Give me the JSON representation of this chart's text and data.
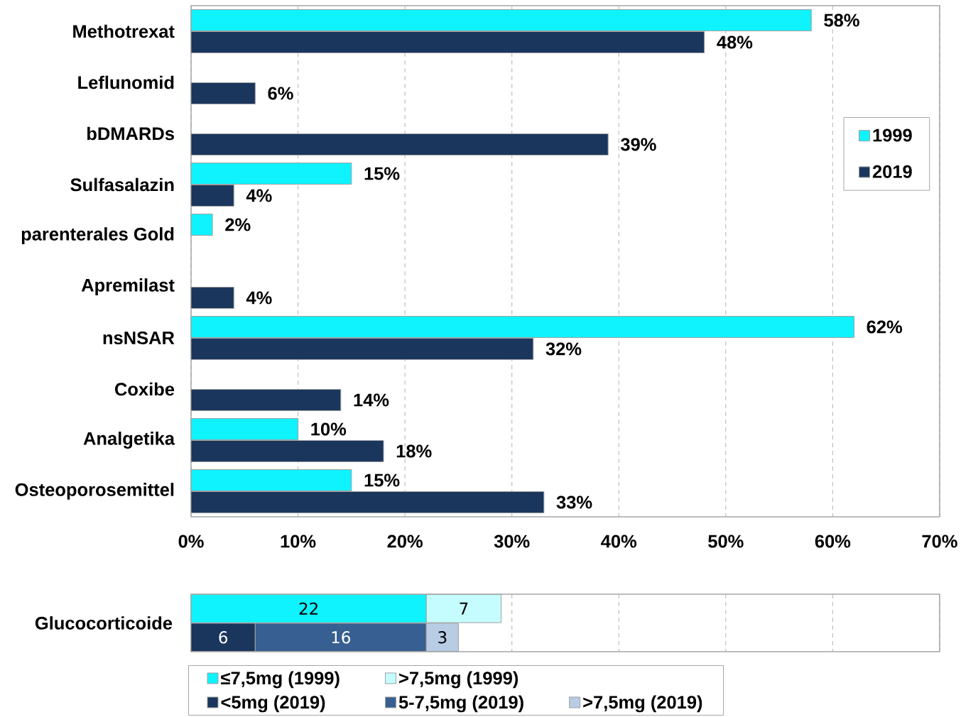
{
  "chart_data": [
    {
      "type": "bar",
      "orientation": "horizontal",
      "categories": [
        "Methotrexat",
        "Leflunomid",
        "bDMARDs",
        "Sulfasalazin",
        "parenterales Gold",
        "Apremilast",
        "nsNSAR",
        "Coxibe",
        "Analgetika",
        "Osteoporosemittel"
      ],
      "series": [
        {
          "name": "1999",
          "color": "#0ff3ff",
          "values": [
            58,
            null,
            null,
            15,
            2,
            null,
            62,
            null,
            10,
            15
          ],
          "value_labels": [
            "58%",
            null,
            null,
            "15%",
            "2%",
            null,
            "62%",
            null,
            "10%",
            "15%"
          ]
        },
        {
          "name": "2019",
          "color": "#1a365d",
          "values": [
            48,
            6,
            39,
            4,
            null,
            4,
            32,
            14,
            18,
            33
          ],
          "value_labels": [
            "48%",
            "6%",
            "39%",
            "4%",
            null,
            "4%",
            "32%",
            "14%",
            "18%",
            "33%"
          ]
        }
      ],
      "xlim": [
        0,
        70
      ],
      "xticks": [
        {
          "value": 0,
          "label": "0%"
        },
        {
          "value": 10,
          "label": "10%"
        },
        {
          "value": 20,
          "label": "20%"
        },
        {
          "value": 30,
          "label": "30%"
        },
        {
          "value": 40,
          "label": "40%"
        },
        {
          "value": 50,
          "label": "50%"
        },
        {
          "value": 60,
          "label": "60%"
        },
        {
          "value": 70,
          "label": "70%"
        }
      ],
      "grid": "x",
      "legend": "right"
    },
    {
      "type": "bar",
      "orientation": "horizontal",
      "stacked": true,
      "categories": [
        null,
        null
      ],
      "ylabel": "Glucocorticoide",
      "series": [
        {
          "name": "≤7,5mg (1999)",
          "color": "#0ff3ff",
          "values": [
            22,
            null
          ]
        },
        {
          "name": ">7,5mg (1999)",
          "color": "#c5fdff",
          "values": [
            7,
            null
          ]
        },
        {
          "name": "<5mg (2019)",
          "color": "#1a365d",
          "values": [
            null,
            6
          ]
        },
        {
          "name": "5-7,5mg (2019)",
          "color": "#375f91",
          "values": [
            null,
            16
          ]
        },
        {
          "name": ">7,5mg (2019)",
          "color": "#b8cce4",
          "values": [
            null,
            3
          ]
        }
      ],
      "xlim": [
        0,
        70
      ],
      "xticks": [
        {
          "value": 0,
          "label": null
        },
        {
          "value": 10,
          "label": null
        },
        {
          "value": 20,
          "label": null
        },
        {
          "value": 30,
          "label": null
        },
        {
          "value": 40,
          "label": null
        },
        {
          "value": 50,
          "label": null
        },
        {
          "value": 60,
          "label": null
        },
        {
          "value": 70,
          "label": null
        }
      ],
      "grid": "x",
      "data_labels": true,
      "legend": "bottom"
    }
  ]
}
